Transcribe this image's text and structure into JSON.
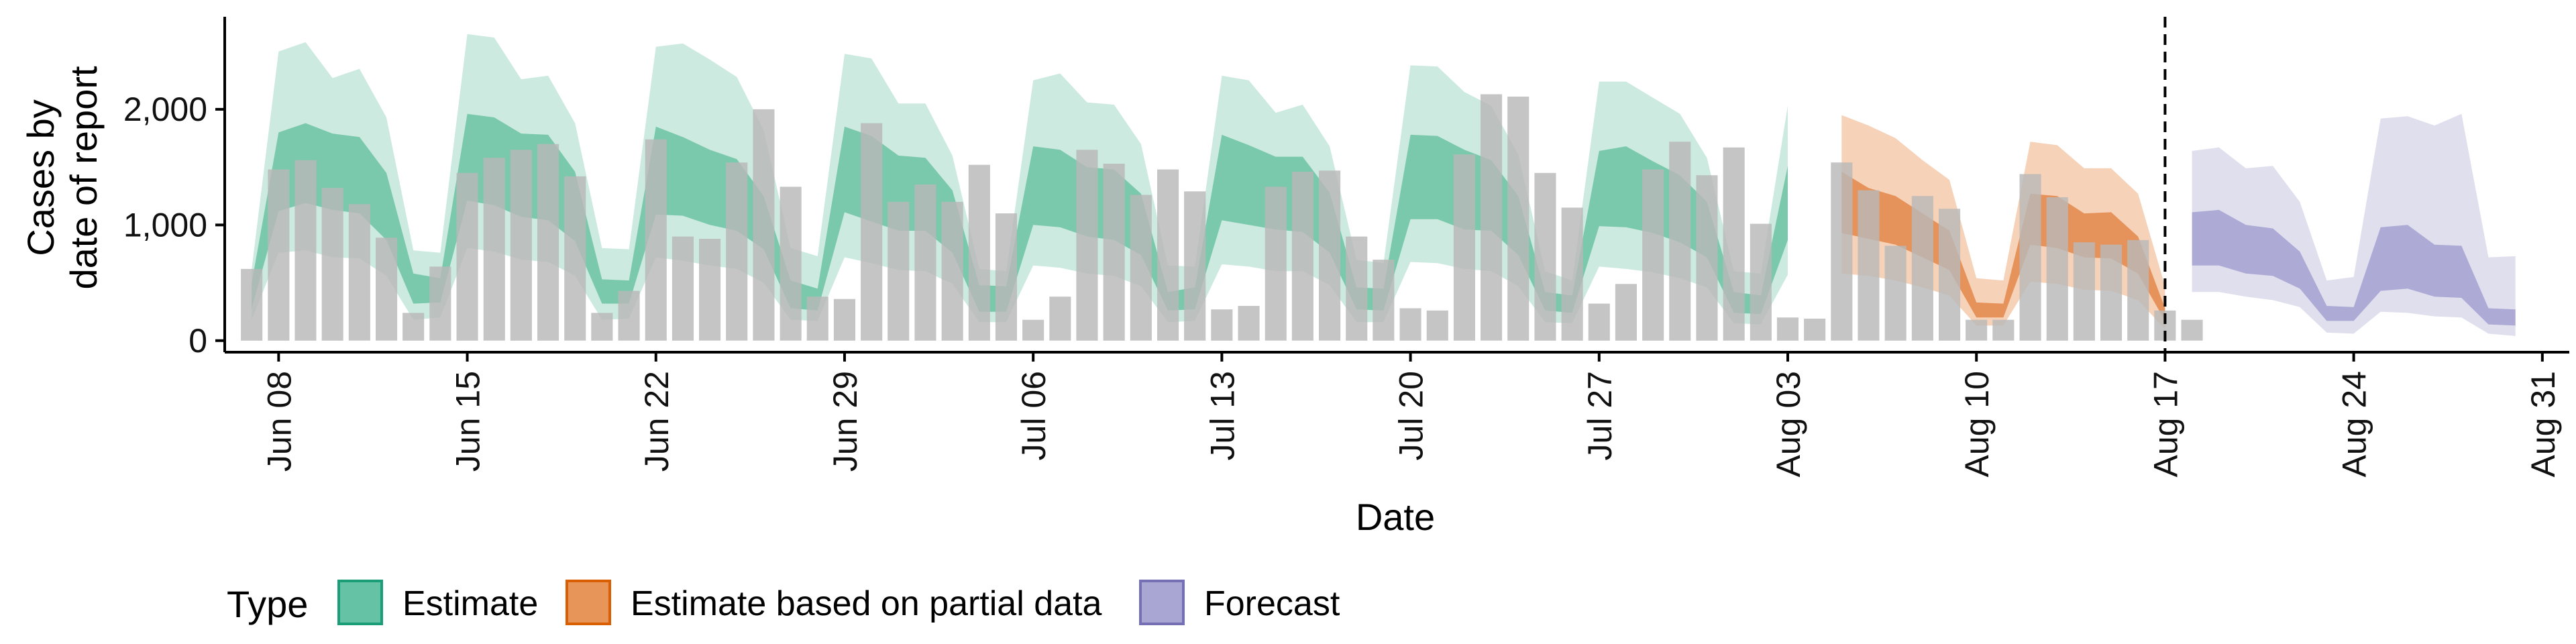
{
  "chart_data": {
    "type": "area",
    "xlabel": "Date",
    "ylabel_line1": "Cases by",
    "ylabel_line2": "date of report",
    "x_range": [
      "2020-06-06",
      "2020-09-01"
    ],
    "ylim": [
      -100,
      2800
    ],
    "yticks": [
      0,
      1000,
      2000
    ],
    "ytick_labels": [
      "0",
      "1,000",
      "2,000"
    ],
    "xticks": [
      "2020-06-08",
      "2020-06-15",
      "2020-06-22",
      "2020-06-29",
      "2020-07-06",
      "2020-07-13",
      "2020-07-20",
      "2020-07-27",
      "2020-08-03",
      "2020-08-10",
      "2020-08-17",
      "2020-08-24",
      "2020-08-31"
    ],
    "xtick_labels": [
      "Jun 08",
      "Jun 15",
      "Jun 22",
      "Jun 29",
      "Jul 06",
      "Jul 13",
      "Jul 20",
      "Jul 27",
      "Aug 03",
      "Aug 10",
      "Aug 17",
      "Aug 24",
      "Aug 31"
    ],
    "vline_date": "2020-08-17",
    "legend": {
      "title": "Type",
      "placement": "bottom",
      "entries": [
        {
          "label": "Estimate",
          "fill": "#66c2a5",
          "stroke": "#1b9e77"
        },
        {
          "label": "Estimate based on partial data",
          "fill": "#e8955a",
          "stroke": "#d95f02"
        },
        {
          "label": "Forecast",
          "fill": "#a9a6d4",
          "stroke": "#7570b3"
        }
      ]
    },
    "colors": {
      "bar": "#b8b8b8",
      "estimate_outer": "#c6e8dd",
      "estimate_inner": "#6cc3a2",
      "partial_outer": "#f5cdb0",
      "partial_inner": "#e3884a",
      "forecast_outer": "#dcdcec",
      "forecast_inner": "#a4a1d0",
      "axis": "#000000",
      "vline": "#000000"
    },
    "bars": {
      "start_date": "2020-06-07",
      "values": [
        620,
        1480,
        1560,
        1320,
        1180,
        890,
        240,
        640,
        1450,
        1580,
        1650,
        1700,
        1420,
        240,
        430,
        1740,
        900,
        880,
        1540,
        2000,
        1330,
        380,
        360,
        1880,
        1200,
        1350,
        1200,
        1520,
        1100,
        180,
        380,
        1650,
        1530,
        1260,
        1480,
        1290,
        270,
        300,
        1330,
        1460,
        1470,
        900,
        700,
        280,
        260,
        1610,
        2130,
        2110,
        1450,
        1150,
        320,
        490,
        1480,
        1720,
        1430,
        1670,
        1010,
        200,
        190,
        1540,
        1300,
        820,
        1250,
        1140,
        180,
        180,
        1440,
        1240,
        850,
        830,
        870,
        260,
        180
      ]
    },
    "series": [
      {
        "name": "Estimate",
        "start_date": "2020-06-07",
        "outer_upper": [
          620,
          2500,
          2580,
          2270,
          2350,
          1930,
          780,
          760,
          2650,
          2620,
          2260,
          2290,
          1880,
          800,
          790,
          2540,
          2570,
          2430,
          2280,
          1820,
          800,
          730,
          2480,
          2440,
          2050,
          2050,
          1600,
          620,
          600,
          2250,
          2310,
          2060,
          2040,
          1700,
          650,
          640,
          2290,
          2250,
          1970,
          2040,
          1680,
          700,
          670,
          2380,
          2370,
          2150,
          2030,
          1610,
          600,
          520,
          2240,
          2240,
          2100,
          1960,
          1580,
          600,
          580,
          2030
        ],
        "inner_upper": [
          500,
          1800,
          1880,
          1790,
          1760,
          1450,
          580,
          540,
          1960,
          1930,
          1790,
          1780,
          1460,
          530,
          520,
          1850,
          1760,
          1650,
          1570,
          1250,
          520,
          450,
          1850,
          1770,
          1600,
          1580,
          1300,
          480,
          470,
          1680,
          1650,
          1500,
          1480,
          1270,
          420,
          460,
          1780,
          1690,
          1590,
          1590,
          1280,
          460,
          450,
          1780,
          1770,
          1650,
          1560,
          1250,
          420,
          390,
          1640,
          1680,
          1550,
          1430,
          1200,
          420,
          390,
          1510
        ],
        "inner_lower": [
          280,
          1120,
          1190,
          1130,
          1100,
          870,
          320,
          330,
          1210,
          1170,
          1070,
          1040,
          860,
          320,
          320,
          1090,
          1080,
          1000,
          950,
          790,
          280,
          260,
          1110,
          1030,
          950,
          950,
          760,
          250,
          250,
          1000,
          980,
          900,
          870,
          740,
          260,
          270,
          1040,
          1000,
          960,
          940,
          760,
          270,
          260,
          1050,
          1050,
          960,
          950,
          740,
          260,
          240,
          990,
          980,
          930,
          850,
          720,
          240,
          230,
          870
        ],
        "outer_lower": [
          180,
          760,
          780,
          720,
          710,
          560,
          180,
          200,
          800,
          770,
          700,
          680,
          560,
          180,
          190,
          720,
          690,
          650,
          620,
          500,
          180,
          170,
          720,
          670,
          610,
          600,
          490,
          160,
          160,
          650,
          630,
          580,
          560,
          470,
          160,
          170,
          660,
          640,
          600,
          600,
          480,
          160,
          160,
          680,
          670,
          620,
          600,
          470,
          160,
          150,
          640,
          620,
          590,
          540,
          460,
          150,
          140,
          570
        ]
      },
      {
        "name": "Estimate based on partial data",
        "start_date": "2020-08-05",
        "outer_upper": [
          1950,
          1860,
          1750,
          1560,
          1390,
          540,
          520,
          1720,
          1690,
          1490,
          1490,
          1270,
          470
        ],
        "inner_upper": [
          1460,
          1320,
          1250,
          1100,
          950,
          330,
          320,
          1270,
          1250,
          1100,
          1110,
          900,
          280
        ],
        "inner_lower": [
          930,
          880,
          830,
          720,
          610,
          200,
          200,
          830,
          800,
          720,
          710,
          580,
          170
        ],
        "outer_lower": [
          580,
          560,
          520,
          460,
          390,
          130,
          130,
          510,
          490,
          440,
          430,
          350,
          100
        ]
      },
      {
        "name": "Forecast",
        "start_date": "2020-08-18",
        "outer_upper": [
          1640,
          1670,
          1490,
          1510,
          1200,
          520,
          550,
          1920,
          1940,
          1860,
          1960,
          720,
          730
        ],
        "inner_upper": [
          1110,
          1130,
          1000,
          970,
          770,
          300,
          290,
          980,
          1000,
          830,
          820,
          280,
          270
        ],
        "inner_lower": [
          650,
          650,
          580,
          560,
          450,
          170,
          170,
          430,
          450,
          380,
          370,
          140,
          130
        ],
        "outer_lower": [
          420,
          420,
          380,
          350,
          290,
          70,
          60,
          250,
          240,
          210,
          200,
          60,
          40
        ]
      }
    ]
  }
}
